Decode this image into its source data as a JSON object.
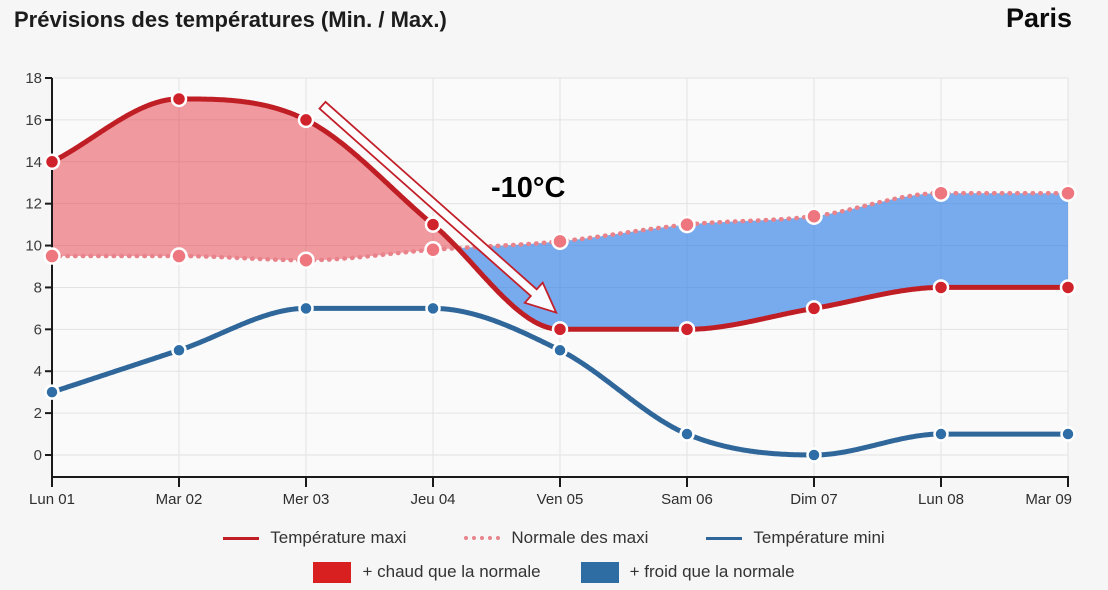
{
  "header": {
    "title": "Prévisions des températures (Min. / Max.)",
    "city": "Paris"
  },
  "chart_data": {
    "type": "line",
    "title": "Prévisions des températures (Min. / Max.)",
    "categories": [
      "Lun 01",
      "Mar 02",
      "Mer 03",
      "Jeu 04",
      "Ven 05",
      "Sam 06",
      "Dim 07",
      "Lun 08",
      "Mar 09"
    ],
    "series": [
      {
        "name": "Température maxi",
        "values": [
          14,
          17,
          16,
          11,
          6,
          6,
          7,
          8,
          8
        ],
        "color": "#c01e25",
        "point_color": "#d0222a",
        "style": "solid",
        "width": 5
      },
      {
        "name": "Normale des maxi",
        "values": [
          9.5,
          9.5,
          9.3,
          9.8,
          10.2,
          11,
          11.4,
          12.5,
          12.5
        ],
        "color": "#e8838b",
        "point_color": "#ee767e",
        "style": "dotted",
        "width": 4.5
      },
      {
        "name": "Température mini",
        "values": [
          3,
          5,
          7,
          7,
          5,
          1,
          0,
          1,
          1
        ],
        "color": "#30679b",
        "point_color": "#2e6da6",
        "style": "solid",
        "width": 5
      }
    ],
    "ylim": [
      0,
      18
    ],
    "ytick_step": 2,
    "grid": true,
    "legend_position": "bottom",
    "bands": {
      "warmer_label": "+ chaud que la normale",
      "colder_label": "+ froid que la normale",
      "warmer_fill": "rgba(229,57,70,0.5)",
      "colder_fill": "rgba(50,128,232,0.65)",
      "warmer_swatch": "#d7201f",
      "colder_swatch": "#2e6da4"
    },
    "annotation": {
      "label": "-10°C",
      "label_pos": {
        "day": 3.75,
        "temp": 12.8
      },
      "arrow_from": {
        "day": 2.13,
        "temp": 16.7
      },
      "arrow_to": {
        "day": 3.97,
        "temp": 6.8
      },
      "arrow_outline": "#c2212b",
      "arrow_fill": "#ffffff"
    },
    "axis_color": "#1a1a1a",
    "grid_color": "#e3e3e3",
    "plot_bg": "#fafafa",
    "tick_label_color": "#3b3b3b"
  }
}
